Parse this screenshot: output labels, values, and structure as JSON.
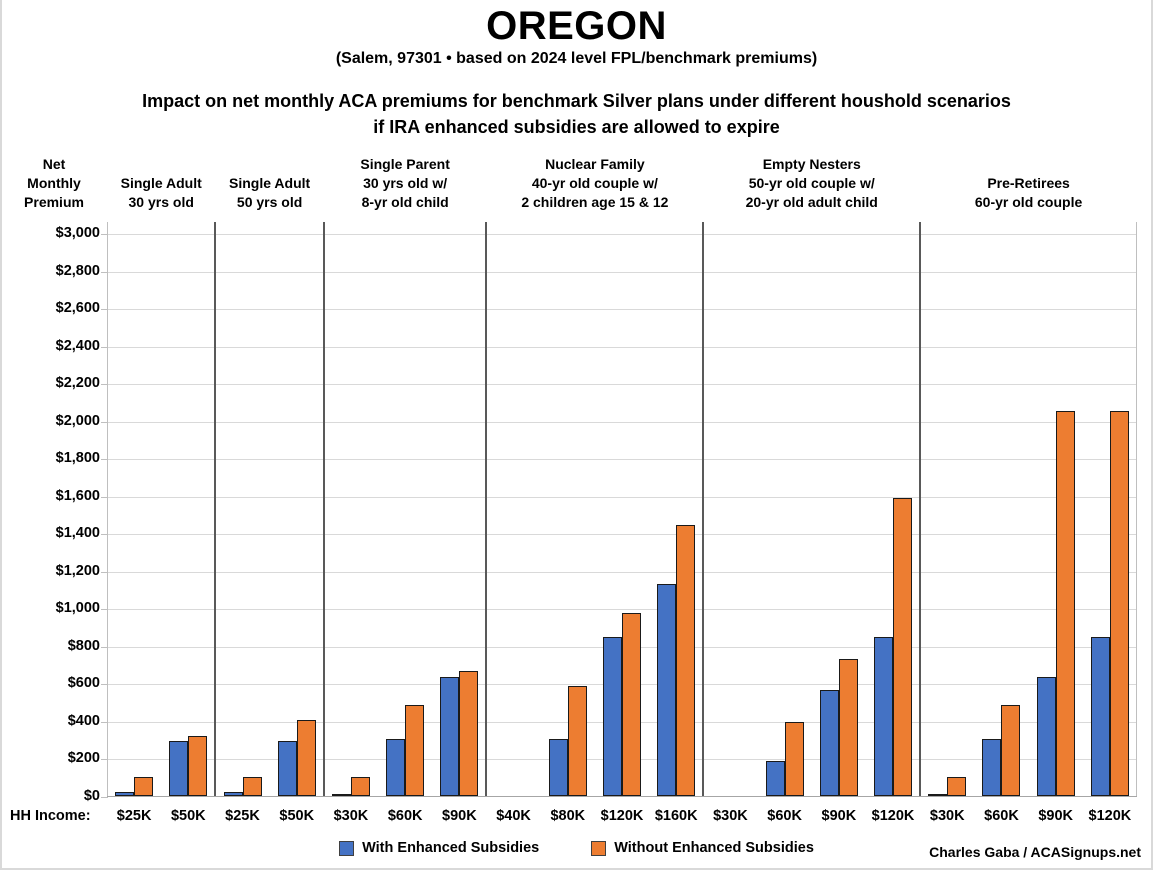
{
  "chart_data": {
    "type": "bar",
    "title": "OREGON",
    "subtitle": "(Salem, 97301 • based on 2024 level FPL/benchmark premiums)",
    "heading_lines": [
      "Impact on net monthly ACA premiums for benchmark Silver plans under different houshold scenarios",
      "if IRA enhanced subsidies are allowed to expire"
    ],
    "ylabel_lines": [
      "Net",
      "Monthly",
      "Premium"
    ],
    "ylabel": "Net Monthly Premium",
    "ylim": [
      0,
      3000
    ],
    "ytick_step": 200,
    "ytick_labels_top_down": [
      "$3,000",
      "$2,800",
      "$2,600",
      "$2,400",
      "$2,200",
      "$2,000",
      "$1,800",
      "$1,600",
      "$1,400",
      "$1,200",
      "$1,000",
      "$800",
      "$600",
      "$400",
      "$200",
      "$0"
    ],
    "grid": true,
    "legend_position": "bottom",
    "x_axis_prefix": "HH Income:",
    "series": [
      {
        "name": "With Enhanced Subsidies",
        "color": "#4472C4"
      },
      {
        "name": "Without Enhanced Subsidies",
        "color": "#ED7D31"
      }
    ],
    "groups": [
      {
        "title_lines": [
          "Single Adult",
          "30 yrs old"
        ],
        "categories": [
          "$25K",
          "$50K"
        ],
        "series_values": [
          [
            20,
            295
          ],
          [
            100,
            320
          ]
        ]
      },
      {
        "title_lines": [
          "Single Adult",
          "50 yrs old"
        ],
        "categories": [
          "$25K",
          "$50K"
        ],
        "series_values": [
          [
            20,
            295
          ],
          [
            100,
            405
          ]
        ]
      },
      {
        "title_lines": [
          "Single Parent",
          "30 yrs old w/",
          "8-yr old child"
        ],
        "categories": [
          "$30K",
          "$60K",
          "$90K"
        ],
        "series_values": [
          [
            5,
            305,
            635
          ],
          [
            100,
            485,
            665
          ]
        ]
      },
      {
        "title_lines": [
          "Nuclear Family",
          "40-yr old couple w/",
          "2 children age 15 & 12"
        ],
        "categories": [
          "$40K",
          "$80K",
          "$120K",
          "$160K"
        ],
        "series_values": [
          [
            0,
            305,
            845,
            1130
          ],
          [
            0,
            585,
            975,
            1445
          ]
        ]
      },
      {
        "title_lines": [
          "Empty Nesters",
          "50-yr old couple w/",
          "20-yr old adult child"
        ],
        "categories": [
          "$30K",
          "$60K",
          "$90K",
          "$120K"
        ],
        "series_values": [
          [
            0,
            185,
            565,
            845
          ],
          [
            0,
            395,
            730,
            1590
          ]
        ]
      },
      {
        "title_lines": [
          "Pre-Retirees",
          "60-yr old couple"
        ],
        "categories": [
          "$30K",
          "$60K",
          "$90K",
          "$120K"
        ],
        "series_values": [
          [
            5,
            305,
            635,
            845
          ],
          [
            100,
            485,
            2050,
            2050
          ]
        ]
      }
    ],
    "colors": {
      "grid": "#D9D9D9",
      "panel_divider": "#595959",
      "axis": "#BFBFBF",
      "bar_border": "#1A1A1A"
    },
    "credit": "Charles Gaba / ACASignups.net"
  }
}
